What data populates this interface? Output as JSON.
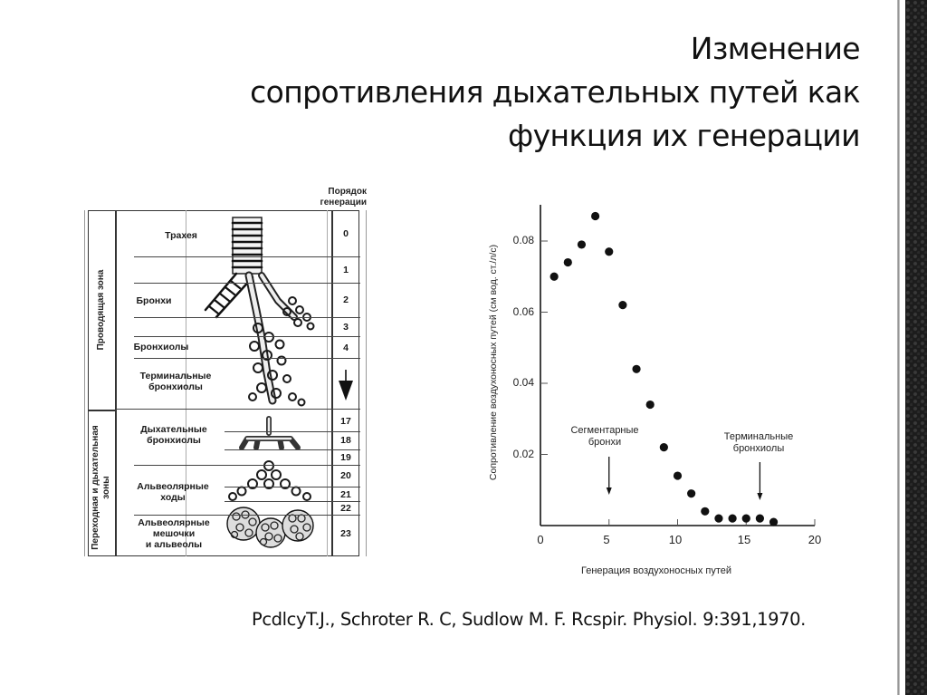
{
  "title": {
    "line1": "Изменение",
    "line2": "сопротивления дыхательных путей как",
    "line3": "функция их генерации"
  },
  "citation": "PcdlcyT.J., Schroter R. C, Sudlow M. F.  Rcspir. Physiol. 9:391,1970.",
  "diagram": {
    "generation_header": [
      "Порядок",
      "генерации"
    ],
    "zones": {
      "conducting": "Проводящая зона",
      "transitional": [
        "Переходная и дыхательная",
        "зоны"
      ]
    },
    "rows": [
      {
        "label": "Трахея",
        "generations": [
          "0"
        ]
      },
      {
        "label": "Бронхи",
        "generations": [
          "1",
          "2",
          "3"
        ]
      },
      {
        "label": "Бронхиолы",
        "generations": [
          "4"
        ]
      },
      {
        "label": "Терминальные бронхиолы",
        "generations": [
          "↓"
        ]
      },
      {
        "label": "Дыхательные бронхиолы",
        "generations": [
          "17",
          "18",
          "19"
        ]
      },
      {
        "label": "Альвеолярные ходы",
        "generations": [
          "20",
          "21",
          "22"
        ]
      },
      {
        "label": "Альвеолярные мешочки и альвеолы",
        "generations": [
          "23"
        ]
      }
    ],
    "labels": {
      "trachea": "Трахея",
      "bronchi": "Бронхи",
      "bronchioles": "Бронхиолы",
      "terminal_1": "Терминальные",
      "terminal_2": "бронхиолы",
      "resp_1": "Дыхательные",
      "resp_2": "бронхиолы",
      "duct_1": "Альвеолярные",
      "duct_2": "ходы",
      "sac_1": "Альвеолярные",
      "sac_2": "мешочки",
      "sac_3": "и альвеолы"
    },
    "numbers": {
      "g0": "0",
      "g1": "1",
      "g2": "2",
      "g3": "3",
      "g4": "4",
      "g17": "17",
      "g18": "18",
      "g19": "19",
      "g20": "20",
      "g21": "21",
      "g22": "22",
      "g23": "23"
    }
  },
  "chart_data": {
    "type": "scatter",
    "title": "",
    "xlabel": "Генерация воздухоносных путей",
    "ylabel": "Сопротивление воздухоносных путей (см вод. ст./л/с)",
    "xlim": [
      0,
      20
    ],
    "ylim": [
      0,
      0.09
    ],
    "xticks": [
      "0",
      "5",
      "10",
      "15",
      "20"
    ],
    "yticks": [
      "0.02",
      "0.04",
      "0.06",
      "0.08"
    ],
    "grid": false,
    "legend": null,
    "series": [
      {
        "name": "Сопротивление",
        "x": [
          1,
          2,
          3,
          4,
          5,
          6,
          7,
          8,
          9,
          10,
          11,
          12,
          13,
          14,
          15,
          16,
          17
        ],
        "y": [
          0.07,
          0.074,
          0.079,
          0.087,
          0.077,
          0.062,
          0.044,
          0.034,
          0.022,
          0.014,
          0.009,
          0.004,
          0.002,
          0.002,
          0.002,
          0.002,
          0.001
        ]
      }
    ],
    "annotations": [
      {
        "text": "Сегментарные бронхи",
        "line1": "Сегментарные",
        "line2": "бронхи",
        "x": 5,
        "arrow": "down"
      },
      {
        "text": "Терминальные бронхиолы",
        "line1": "Терминальные",
        "line2": "бронхиолы",
        "x": 16,
        "arrow": "down"
      }
    ]
  }
}
